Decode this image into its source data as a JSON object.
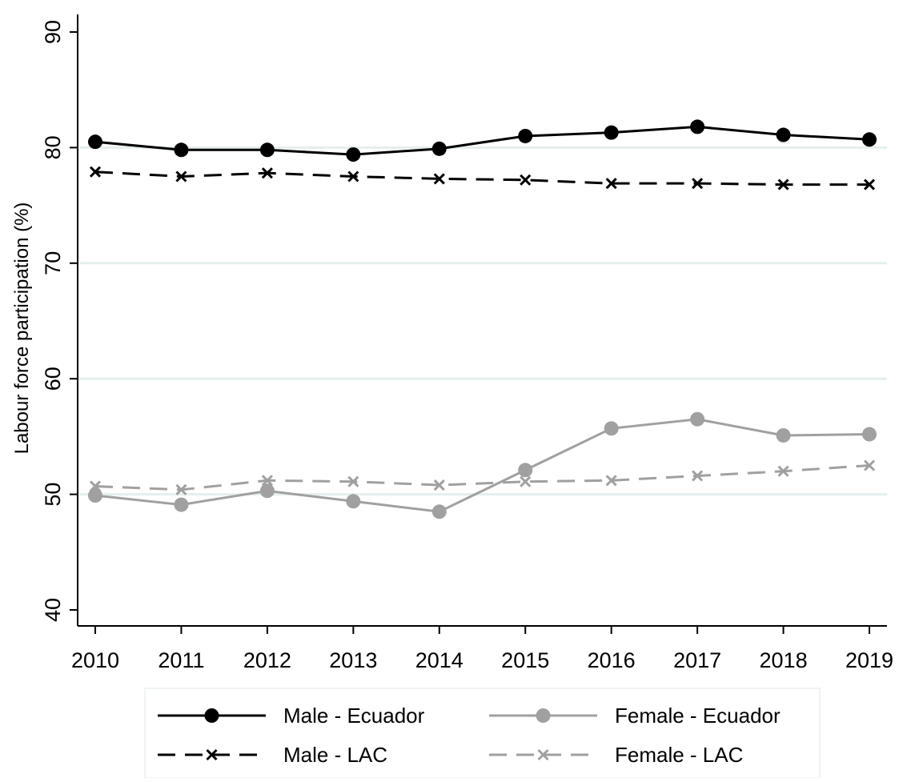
{
  "chart_data": {
    "type": "line",
    "title": "",
    "xlabel": "",
    "ylabel": "Labour force participation (%)",
    "x": [
      2010,
      2011,
      2012,
      2013,
      2014,
      2015,
      2016,
      2017,
      2018,
      2019
    ],
    "x_tick_labels": [
      "2010",
      "2011",
      "2012",
      "2013",
      "2014",
      "2015",
      "2016",
      "2017",
      "2018",
      "2019"
    ],
    "ylim": [
      40,
      90
    ],
    "y_ticks": [
      40,
      50,
      60,
      70,
      80,
      90
    ],
    "y_tick_labels": [
      "40",
      "50",
      "60",
      "70",
      "80",
      "90"
    ],
    "grid": true,
    "grid_color": "#e4efee",
    "legend_position": "bottom",
    "series": [
      {
        "name": "Male - Ecuador",
        "color": "#000000",
        "dash": "solid",
        "marker": "circle",
        "values": [
          80.5,
          79.8,
          79.8,
          79.4,
          79.9,
          81.0,
          81.3,
          81.8,
          81.1,
          80.7
        ]
      },
      {
        "name": "Female - Ecuador",
        "color": "#a0a0a0",
        "dash": "solid",
        "marker": "circle",
        "values": [
          49.9,
          49.1,
          50.3,
          49.4,
          48.5,
          52.1,
          55.7,
          56.5,
          55.1,
          55.2
        ]
      },
      {
        "name": "Male - LAC",
        "color": "#000000",
        "dash": "dashed",
        "marker": "x",
        "values": [
          77.9,
          77.5,
          77.8,
          77.5,
          77.3,
          77.2,
          76.9,
          76.9,
          76.8,
          76.8
        ]
      },
      {
        "name": "Female - LAC",
        "color": "#a0a0a0",
        "dash": "dashed",
        "marker": "x",
        "values": [
          50.7,
          50.4,
          51.2,
          51.1,
          50.8,
          51.1,
          51.2,
          51.6,
          52.0,
          52.5
        ]
      }
    ]
  }
}
